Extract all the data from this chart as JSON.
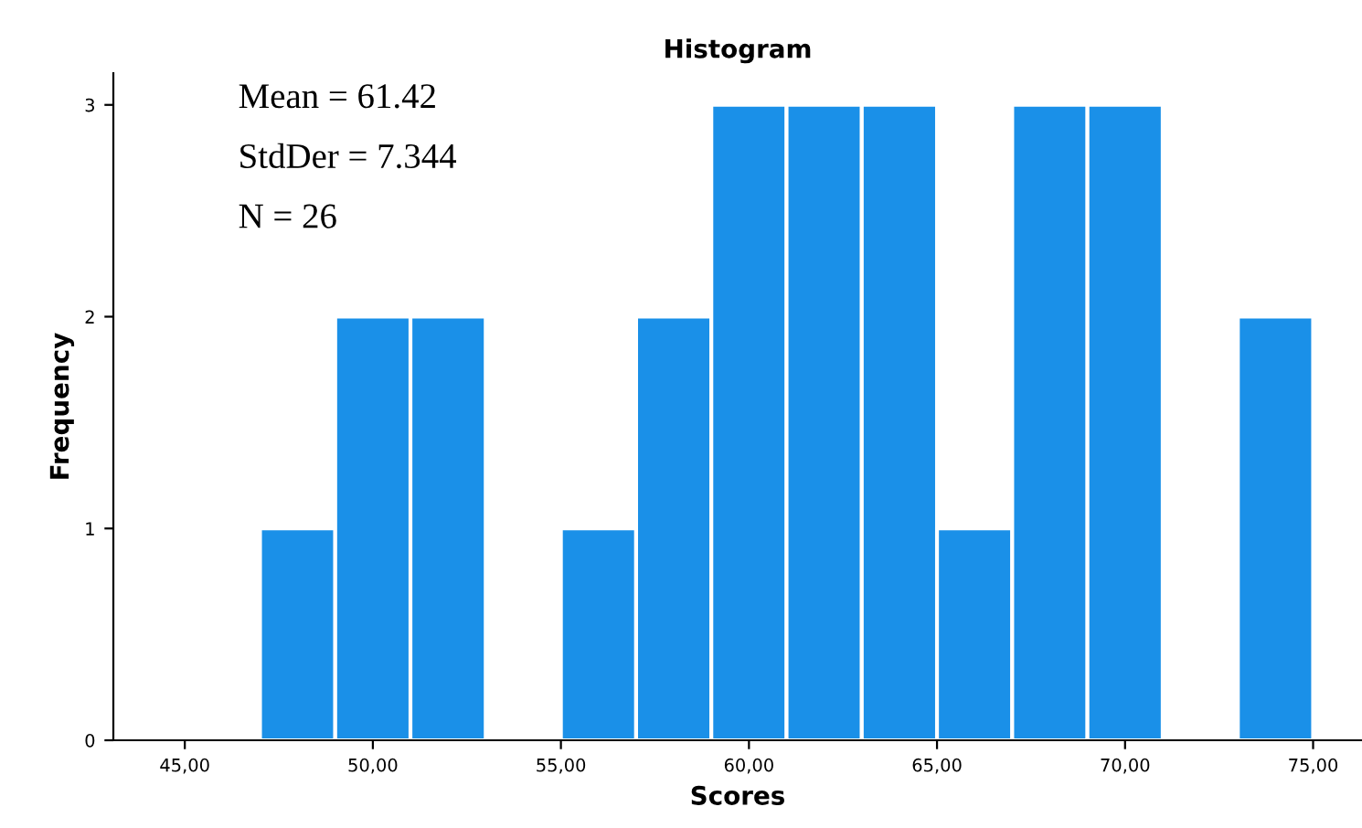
{
  "chart_data": {
    "type": "histogram",
    "title": "Histogram",
    "xlabel": "Scores",
    "ylabel": "Frequency",
    "bins": [
      47,
      49,
      51,
      53,
      55,
      57,
      59,
      61,
      63,
      65,
      67,
      69,
      71,
      73,
      75
    ],
    "values": [
      1,
      2,
      2,
      0,
      1,
      2,
      3,
      3,
      3,
      1,
      3,
      3,
      0,
      2
    ],
    "color": "#1a90e8",
    "xlim": [
      43.1,
      76.3
    ],
    "ylim": [
      0,
      3.15
    ],
    "xticks": [
      {
        "value": 45,
        "label": "45,00"
      },
      {
        "value": 50,
        "label": "50,00"
      },
      {
        "value": 55,
        "label": "55,00"
      },
      {
        "value": 60,
        "label": "60,00"
      },
      {
        "value": 65,
        "label": "65,00"
      },
      {
        "value": 70,
        "label": "70,00"
      },
      {
        "value": 75,
        "label": "75,00"
      }
    ],
    "yticks": [
      0,
      1,
      2,
      3
    ],
    "grid": false,
    "annotations": [
      "Mean = 61.42",
      "StdDer = 7.344",
      "N = 26"
    ]
  }
}
